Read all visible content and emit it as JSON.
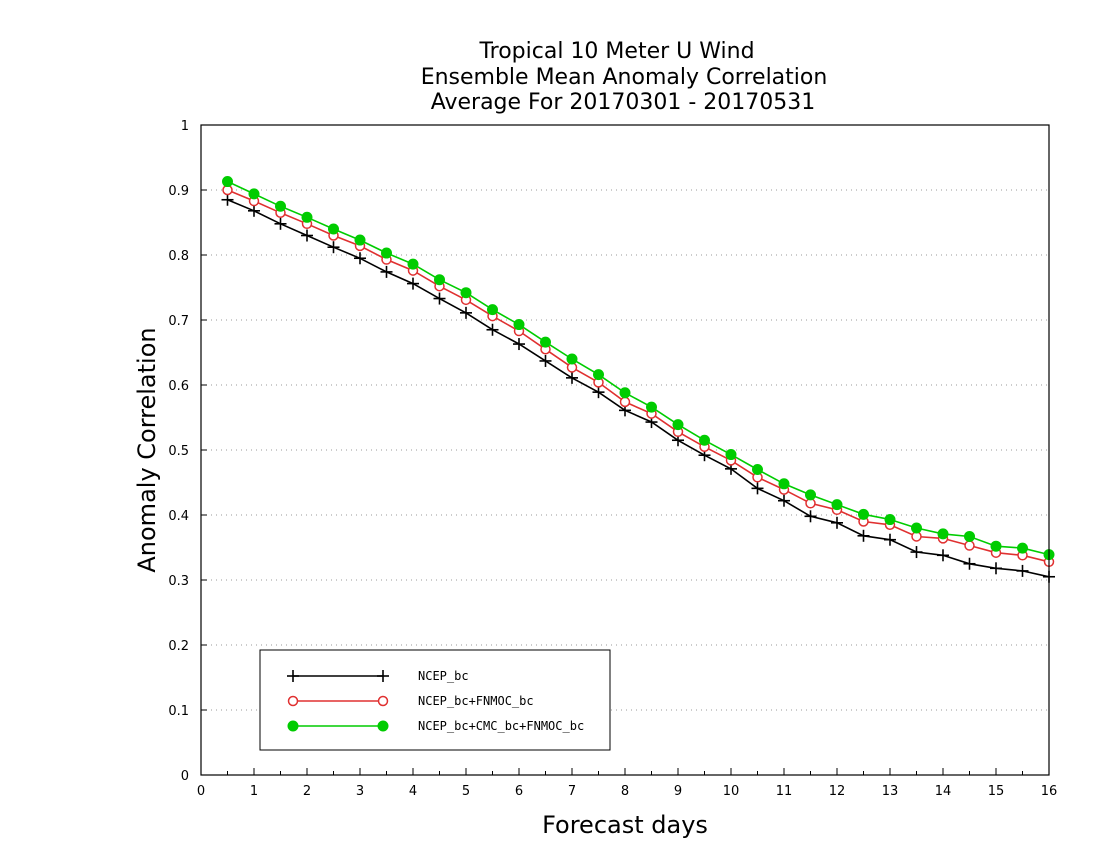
{
  "chart_data": {
    "type": "line",
    "title_lines": [
      "Tropical 10 Meter U Wind",
      "Ensemble Mean Anomaly Correlation",
      "Average For 20170301 - 20170531"
    ],
    "xlabel": "Forecast days",
    "ylabel": "Anomaly Correlation",
    "xlim": [
      0,
      16
    ],
    "ylim": [
      0,
      1
    ],
    "x_ticks": [
      "0",
      "1",
      "2",
      "3",
      "4",
      "5",
      "6",
      "7",
      "8",
      "9",
      "10",
      "11",
      "12",
      "13",
      "14",
      "15",
      "16"
    ],
    "y_ticks": [
      "0",
      "0.1",
      "0.2",
      "0.3",
      "0.4",
      "0.5",
      "0.6",
      "0.7",
      "0.8",
      "0.9",
      "1"
    ],
    "grid": "horizontal-dotted",
    "legend_position": "lower-left",
    "x": [
      0.5,
      1,
      1.5,
      2,
      2.5,
      3,
      3.5,
      4,
      4.5,
      5,
      5.5,
      6,
      6.5,
      7,
      7.5,
      8,
      8.5,
      9,
      9.5,
      10,
      10.5,
      11,
      11.5,
      12,
      12.5,
      13,
      13.5,
      14,
      14.5,
      15,
      15.5,
      16
    ],
    "series": [
      {
        "name": "NCEP_bc",
        "color": "#000000",
        "marker": "plus",
        "values": [
          0.885,
          0.868,
          0.848,
          0.83,
          0.812,
          0.795,
          0.774,
          0.756,
          0.733,
          0.711,
          0.685,
          0.663,
          0.637,
          0.611,
          0.589,
          0.561,
          0.543,
          0.515,
          0.492,
          0.471,
          0.441,
          0.422,
          0.398,
          0.388,
          0.368,
          0.362,
          0.343,
          0.338,
          0.325,
          0.318,
          0.314,
          0.305
        ]
      },
      {
        "name": "NCEP_bc+FNMOC_bc",
        "color": "#e03030",
        "marker": "open-circle",
        "values": [
          0.9,
          0.883,
          0.865,
          0.848,
          0.83,
          0.814,
          0.793,
          0.776,
          0.752,
          0.731,
          0.706,
          0.683,
          0.655,
          0.627,
          0.604,
          0.574,
          0.556,
          0.528,
          0.505,
          0.484,
          0.458,
          0.439,
          0.418,
          0.408,
          0.39,
          0.385,
          0.367,
          0.364,
          0.353,
          0.342,
          0.338,
          0.328
        ]
      },
      {
        "name": "NCEP_bc+CMC_bc+FNMOC_bc",
        "color": "#00cc00",
        "marker": "filled-circle",
        "values": [
          0.913,
          0.894,
          0.875,
          0.858,
          0.84,
          0.823,
          0.803,
          0.786,
          0.762,
          0.742,
          0.716,
          0.693,
          0.666,
          0.64,
          0.616,
          0.588,
          0.566,
          0.539,
          0.515,
          0.493,
          0.47,
          0.448,
          0.431,
          0.416,
          0.401,
          0.393,
          0.38,
          0.371,
          0.367,
          0.352,
          0.349,
          0.339
        ]
      }
    ]
  }
}
